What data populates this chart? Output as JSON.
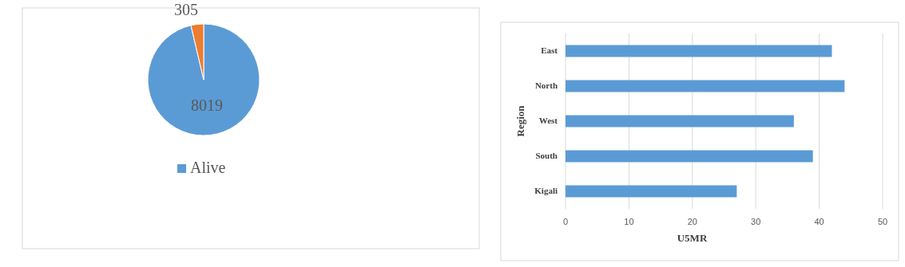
{
  "chart_data": [
    {
      "type": "pie",
      "categories": [
        "Alive",
        null
      ],
      "values": [
        8019,
        305
      ],
      "colors": [
        "#5b9bd5",
        "#ed7d31"
      ],
      "data_labels": true,
      "legend": "bottom"
    },
    {
      "type": "bar",
      "orientation": "horizontal",
      "categories": [
        "East",
        "North",
        "West",
        "South",
        "Kigali"
      ],
      "values": [
        42,
        44,
        36,
        39,
        27
      ],
      "color": "#5b9bd5",
      "xlim": [
        0,
        50
      ],
      "xticks": [
        0,
        10,
        20,
        30,
        40,
        50
      ],
      "grid": "x",
      "xlabel": "U5MR",
      "ylabel": "Region"
    }
  ]
}
